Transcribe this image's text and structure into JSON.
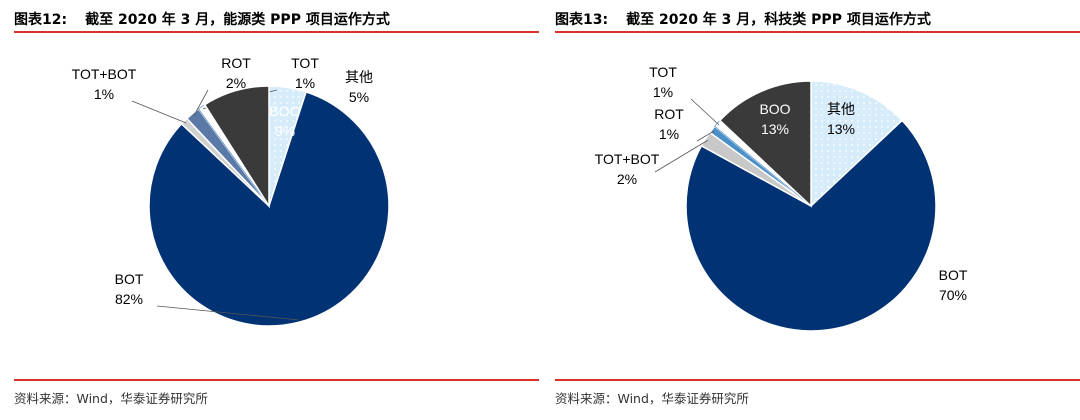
{
  "charts_meta": [
    {
      "label": "图表12:",
      "title": "截至 2020 年 3 月，能源类 PPP 项目运作方式",
      "source": "资料来源：Wind，华泰证券研究所"
    },
    {
      "label": "图表13:",
      "title": "截至 2020 年 3 月，科技类 PPP 项目运作方式",
      "source": "资料来源：Wind，华泰证券研究所"
    }
  ],
  "chart_data": [
    {
      "type": "pie",
      "title": "截至 2020 年 3 月，能源类 PPP 项目运作方式",
      "slices": [
        {
          "name": "其他",
          "value": 5,
          "label": "5%",
          "color": "#d6ecfa",
          "pattern": "dots"
        },
        {
          "name": "BOT",
          "value": 82,
          "label": "82%",
          "color": "#003274"
        },
        {
          "name": "TOT+BOT",
          "value": 1,
          "label": "1%",
          "color": "#d0d0d0"
        },
        {
          "name": "ROT",
          "value": 2,
          "label": "2%",
          "color": "#5a79a6"
        },
        {
          "name": "TOT",
          "value": 1,
          "label": "1%",
          "color": "#ffffff"
        },
        {
          "name": "BOO",
          "value": 9,
          "label": "9%",
          "color": "#3a3a3a"
        }
      ]
    },
    {
      "type": "pie",
      "title": "截至 2020 年 3 月，科技类 PPP 项目运作方式",
      "slices": [
        {
          "name": "其他",
          "value": 13,
          "label": "13%",
          "color": "#d6ecfa",
          "pattern": "dots"
        },
        {
          "name": "BOT",
          "value": 70,
          "label": "70%",
          "color": "#003274"
        },
        {
          "name": "TOT+BOT",
          "value": 2,
          "label": "2%",
          "color": "#c8c8c8"
        },
        {
          "name": "ROT",
          "value": 1,
          "label": "1%",
          "color": "#4a90c8"
        },
        {
          "name": "TOT",
          "value": 1,
          "label": "1%",
          "color": "#ffffff"
        },
        {
          "name": "BOO",
          "value": 13,
          "label": "13%",
          "color": "#3a3a3a"
        }
      ]
    }
  ]
}
